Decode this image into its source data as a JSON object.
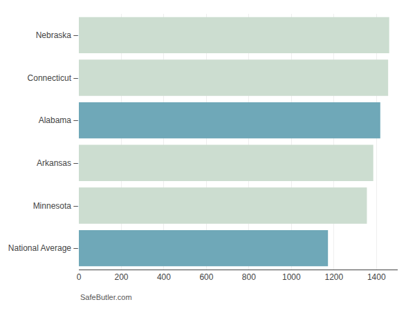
{
  "chart_data": {
    "type": "bar",
    "orientation": "horizontal",
    "categories": [
      "National Average –",
      "Minnesota –",
      "Arkansas –",
      "Alabama –",
      "Connecticut –",
      "Nebraska –"
    ],
    "values": [
      1172,
      1355,
      1385,
      1418,
      1455,
      1460
    ],
    "colors": [
      "#6fa8b8",
      "#ccddd0",
      "#ccddd0",
      "#6fa8b8",
      "#ccddd0",
      "#ccddd0"
    ],
    "xlim": [
      0,
      1500
    ],
    "xticks": [
      0,
      200,
      400,
      600,
      800,
      1000,
      1200,
      1400
    ],
    "grid": true,
    "annotations": [
      "SafeButler.com"
    ]
  }
}
